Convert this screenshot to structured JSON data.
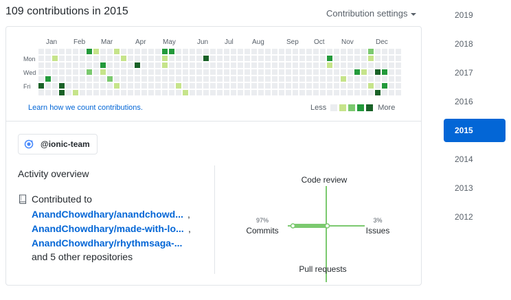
{
  "header": {
    "title": "109 contributions in 2015",
    "settings_label": "Contribution settings"
  },
  "calendar": {
    "months": [
      "Jan",
      "Feb",
      "Mar",
      "Apr",
      "May",
      "Jun",
      "Jul",
      "Aug",
      "Sep",
      "Oct",
      "Nov",
      "Dec"
    ],
    "day_labels": [
      "Mon",
      "Wed",
      "Fri"
    ],
    "colors": [
      "#ebedf0",
      "#c6e48b",
      "#7bc96f",
      "#239a3b",
      "#196127"
    ],
    "active_cells": [
      {
        "week": 0,
        "day": 5,
        "level": 4
      },
      {
        "week": 1,
        "day": 4,
        "level": 3
      },
      {
        "week": 2,
        "day": 1,
        "level": 1
      },
      {
        "week": 3,
        "day": 5,
        "level": 4
      },
      {
        "week": 3,
        "day": 6,
        "level": 4
      },
      {
        "week": 5,
        "day": 6,
        "level": 1
      },
      {
        "week": 7,
        "day": 0,
        "level": 3
      },
      {
        "week": 7,
        "day": 3,
        "level": 2
      },
      {
        "week": 8,
        "day": 0,
        "level": 1
      },
      {
        "week": 9,
        "day": 2,
        "level": 3
      },
      {
        "week": 9,
        "day": 3,
        "level": 1
      },
      {
        "week": 10,
        "day": 4,
        "level": 2
      },
      {
        "week": 11,
        "day": 0,
        "level": 1
      },
      {
        "week": 11,
        "day": 5,
        "level": 1
      },
      {
        "week": 12,
        "day": 1,
        "level": 1
      },
      {
        "week": 14,
        "day": 2,
        "level": 4
      },
      {
        "week": 18,
        "day": 0,
        "level": 3
      },
      {
        "week": 18,
        "day": 1,
        "level": 1
      },
      {
        "week": 18,
        "day": 2,
        "level": 1
      },
      {
        "week": 19,
        "day": 0,
        "level": 3
      },
      {
        "week": 20,
        "day": 5,
        "level": 1
      },
      {
        "week": 21,
        "day": 6,
        "level": 1
      },
      {
        "week": 24,
        "day": 1,
        "level": 4
      },
      {
        "week": 42,
        "day": 1,
        "level": 3
      },
      {
        "week": 42,
        "day": 2,
        "level": 1
      },
      {
        "week": 44,
        "day": 4,
        "level": 1
      },
      {
        "week": 46,
        "day": 3,
        "level": 3
      },
      {
        "week": 47,
        "day": 3,
        "level": 1
      },
      {
        "week": 48,
        "day": 0,
        "level": 2
      },
      {
        "week": 48,
        "day": 1,
        "level": 1
      },
      {
        "week": 48,
        "day": 5,
        "level": 1
      },
      {
        "week": 49,
        "day": 3,
        "level": 4
      },
      {
        "week": 49,
        "day": 6,
        "level": 4
      },
      {
        "week": 50,
        "day": 3,
        "level": 3
      },
      {
        "week": 50,
        "day": 5,
        "level": 3
      }
    ]
  },
  "legend": {
    "learn_link": "Learn how we count contributions.",
    "less": "Less",
    "more": "More"
  },
  "org": {
    "label": "@ionic-team"
  },
  "activity": {
    "title": "Activity overview",
    "contributed_to": "Contributed to",
    "repos": [
      "AnandChowdhary/anandchowd...",
      "AnandChowdhary/made-with-lo...",
      "AnandChowdhary/rhythmsaga-..."
    ],
    "others": "and 5 other repositories",
    "axes": {
      "top": "Code review",
      "bottom": "Pull requests",
      "left": "Commits",
      "right": "Issues",
      "left_pct": "97%",
      "right_pct": "3%",
      "left_value": 97,
      "right_value": 3,
      "color": "#7bc96f"
    }
  },
  "years": {
    "items": [
      "2019",
      "2018",
      "2017",
      "2016",
      "2015",
      "2014",
      "2013",
      "2012"
    ],
    "active": "2015",
    "active_color": "#0366d6"
  }
}
